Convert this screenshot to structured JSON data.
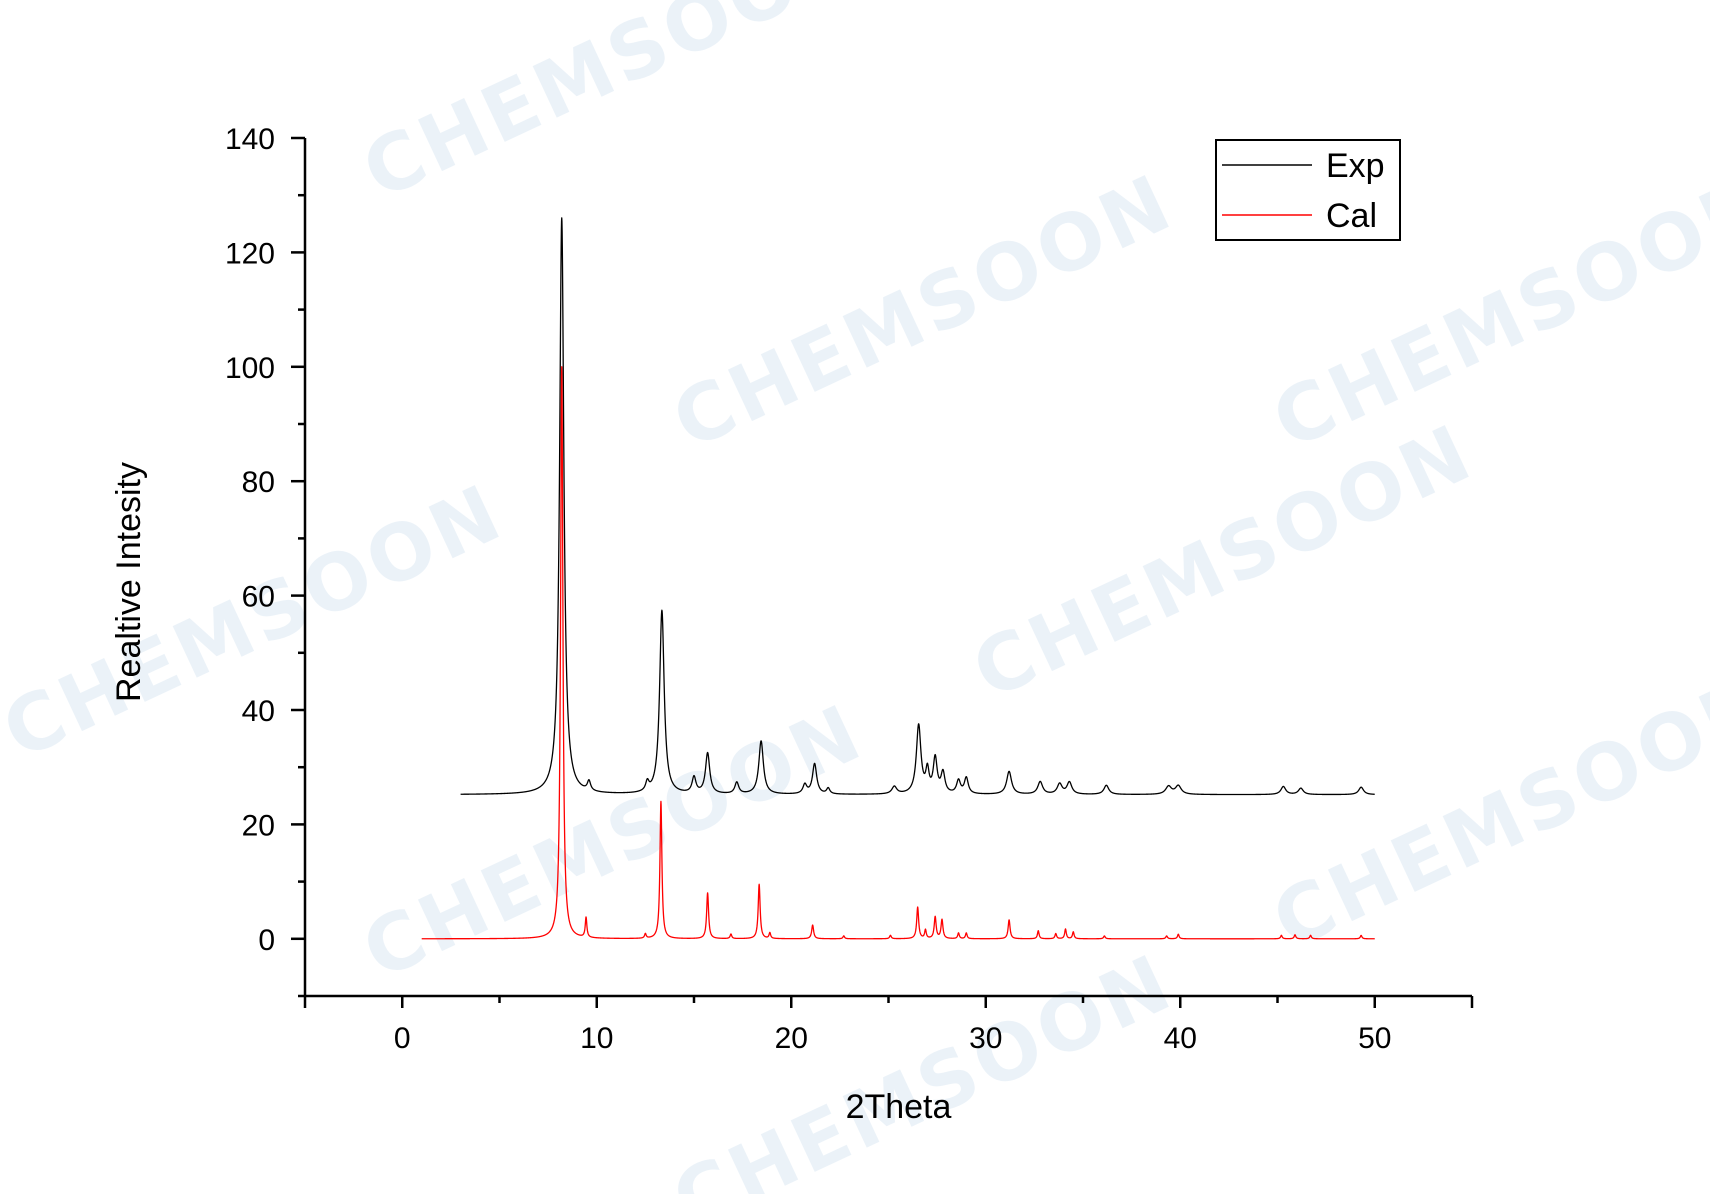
{
  "watermark": "CHEMSOON",
  "chart_data": {
    "type": "line",
    "xlabel": "2Theta",
    "ylabel": "Realtive Intesity",
    "xlim": [
      -5,
      55
    ],
    "ylim": [
      -10,
      140
    ],
    "x_ticks": [
      0,
      10,
      20,
      30,
      40,
      50
    ],
    "y_ticks": [
      0,
      20,
      40,
      60,
      80,
      100,
      120,
      140
    ],
    "legend": {
      "position": "top-right",
      "entries": [
        "Exp",
        "Cal"
      ]
    },
    "grid": false,
    "series": [
      {
        "name": "Exp",
        "color": "#000000",
        "x_range": [
          3,
          50
        ],
        "baseline": 25.2,
        "peaks": [
          [
            8.2,
            126.0,
            0.13
          ],
          [
            9.6,
            26.9,
            0.1
          ],
          [
            12.6,
            26.8,
            0.1
          ],
          [
            13.35,
            57.3,
            0.14
          ],
          [
            15.0,
            28.0,
            0.12
          ],
          [
            15.7,
            32.3,
            0.13
          ],
          [
            17.2,
            27.2,
            0.12
          ],
          [
            18.45,
            34.5,
            0.14
          ],
          [
            20.7,
            26.8,
            0.12
          ],
          [
            21.2,
            30.5,
            0.13
          ],
          [
            21.9,
            26.2,
            0.1
          ],
          [
            25.3,
            26.5,
            0.15
          ],
          [
            26.55,
            37.2,
            0.14
          ],
          [
            27.0,
            29.0,
            0.1
          ],
          [
            27.4,
            31.3,
            0.12
          ],
          [
            27.8,
            28.8,
            0.12
          ],
          [
            28.6,
            27.5,
            0.12
          ],
          [
            29.0,
            28.0,
            0.12
          ],
          [
            31.2,
            29.2,
            0.15
          ],
          [
            32.8,
            27.4,
            0.15
          ],
          [
            33.8,
            27.0,
            0.15
          ],
          [
            34.3,
            27.3,
            0.15
          ],
          [
            36.2,
            26.8,
            0.15
          ],
          [
            39.4,
            26.6,
            0.18
          ],
          [
            39.9,
            26.7,
            0.18
          ],
          [
            45.3,
            26.6,
            0.15
          ],
          [
            46.2,
            26.3,
            0.15
          ],
          [
            49.3,
            26.5,
            0.15
          ]
        ]
      },
      {
        "name": "Cal",
        "color": "#ff0000",
        "x_range": [
          1,
          50
        ],
        "baseline": 0,
        "peaks": [
          [
            8.2,
            100.0,
            0.07
          ],
          [
            9.45,
            3.5,
            0.05
          ],
          [
            12.5,
            0.8,
            0.05
          ],
          [
            13.3,
            24.0,
            0.06
          ],
          [
            15.7,
            8.0,
            0.06
          ],
          [
            16.9,
            0.8,
            0.05
          ],
          [
            18.35,
            9.5,
            0.06
          ],
          [
            18.9,
            1.0,
            0.05
          ],
          [
            21.1,
            2.4,
            0.06
          ],
          [
            22.7,
            0.5,
            0.05
          ],
          [
            25.1,
            0.6,
            0.05
          ],
          [
            26.5,
            5.5,
            0.06
          ],
          [
            26.9,
            1.5,
            0.05
          ],
          [
            27.4,
            3.8,
            0.06
          ],
          [
            27.75,
            3.3,
            0.06
          ],
          [
            28.6,
            1.0,
            0.05
          ],
          [
            29.0,
            1.0,
            0.05
          ],
          [
            31.2,
            3.3,
            0.06
          ],
          [
            32.7,
            1.4,
            0.05
          ],
          [
            33.6,
            0.9,
            0.05
          ],
          [
            34.1,
            1.7,
            0.05
          ],
          [
            34.5,
            1.2,
            0.05
          ],
          [
            36.1,
            0.5,
            0.05
          ],
          [
            39.3,
            0.5,
            0.05
          ],
          [
            39.9,
            0.8,
            0.05
          ],
          [
            45.2,
            0.6,
            0.05
          ],
          [
            45.9,
            0.7,
            0.05
          ],
          [
            46.7,
            0.6,
            0.05
          ],
          [
            49.3,
            0.6,
            0.05
          ]
        ]
      }
    ]
  }
}
